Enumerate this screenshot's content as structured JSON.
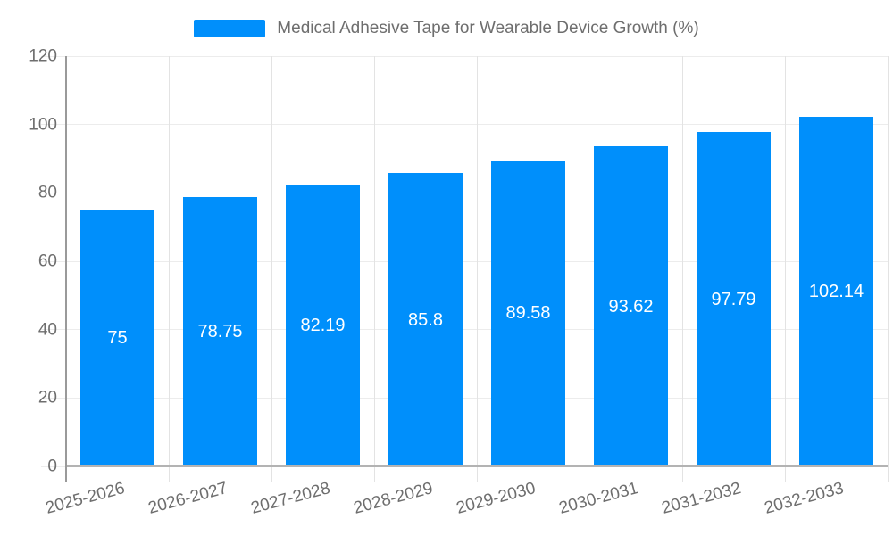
{
  "chart_data": {
    "type": "bar",
    "title": "Medical Adhesive Tape for Wearable Device Growth (%)",
    "categories": [
      "2025-2026",
      "2026-2027",
      "2027-2028",
      "2028-2029",
      "2029-2030",
      "2030-2031",
      "2031-2032",
      "2032-2033"
    ],
    "series": [
      {
        "name": "Medical Adhesive Tape for Wearable Device Growth (%)",
        "values": [
          75,
          78.75,
          82.19,
          85.8,
          89.58,
          93.62,
          97.79,
          102.14
        ]
      }
    ],
    "data_labels": [
      "75",
      "78.75",
      "82.19",
      "85.8",
      "89.58",
      "93.62",
      "97.79",
      "102.14"
    ],
    "xlabel": "",
    "ylabel": "",
    "ylim": [
      0,
      120
    ],
    "ytick_labels": [
      "0",
      "20",
      "40",
      "60",
      "80",
      "100",
      "120"
    ],
    "grid": "horizontal and vertical gridlines on",
    "legend_position": "top-center"
  },
  "colors": {
    "bar": "#008FFB",
    "data_label": "#ffffff",
    "axis_label": "#6e6e6e",
    "legend_label": "#6e6e6e",
    "grid_h": "#ececec",
    "grid_v": "#e3e3e3",
    "x_axis_border": "#b3b3b3",
    "y_axis_border": "#9a9a9a"
  }
}
